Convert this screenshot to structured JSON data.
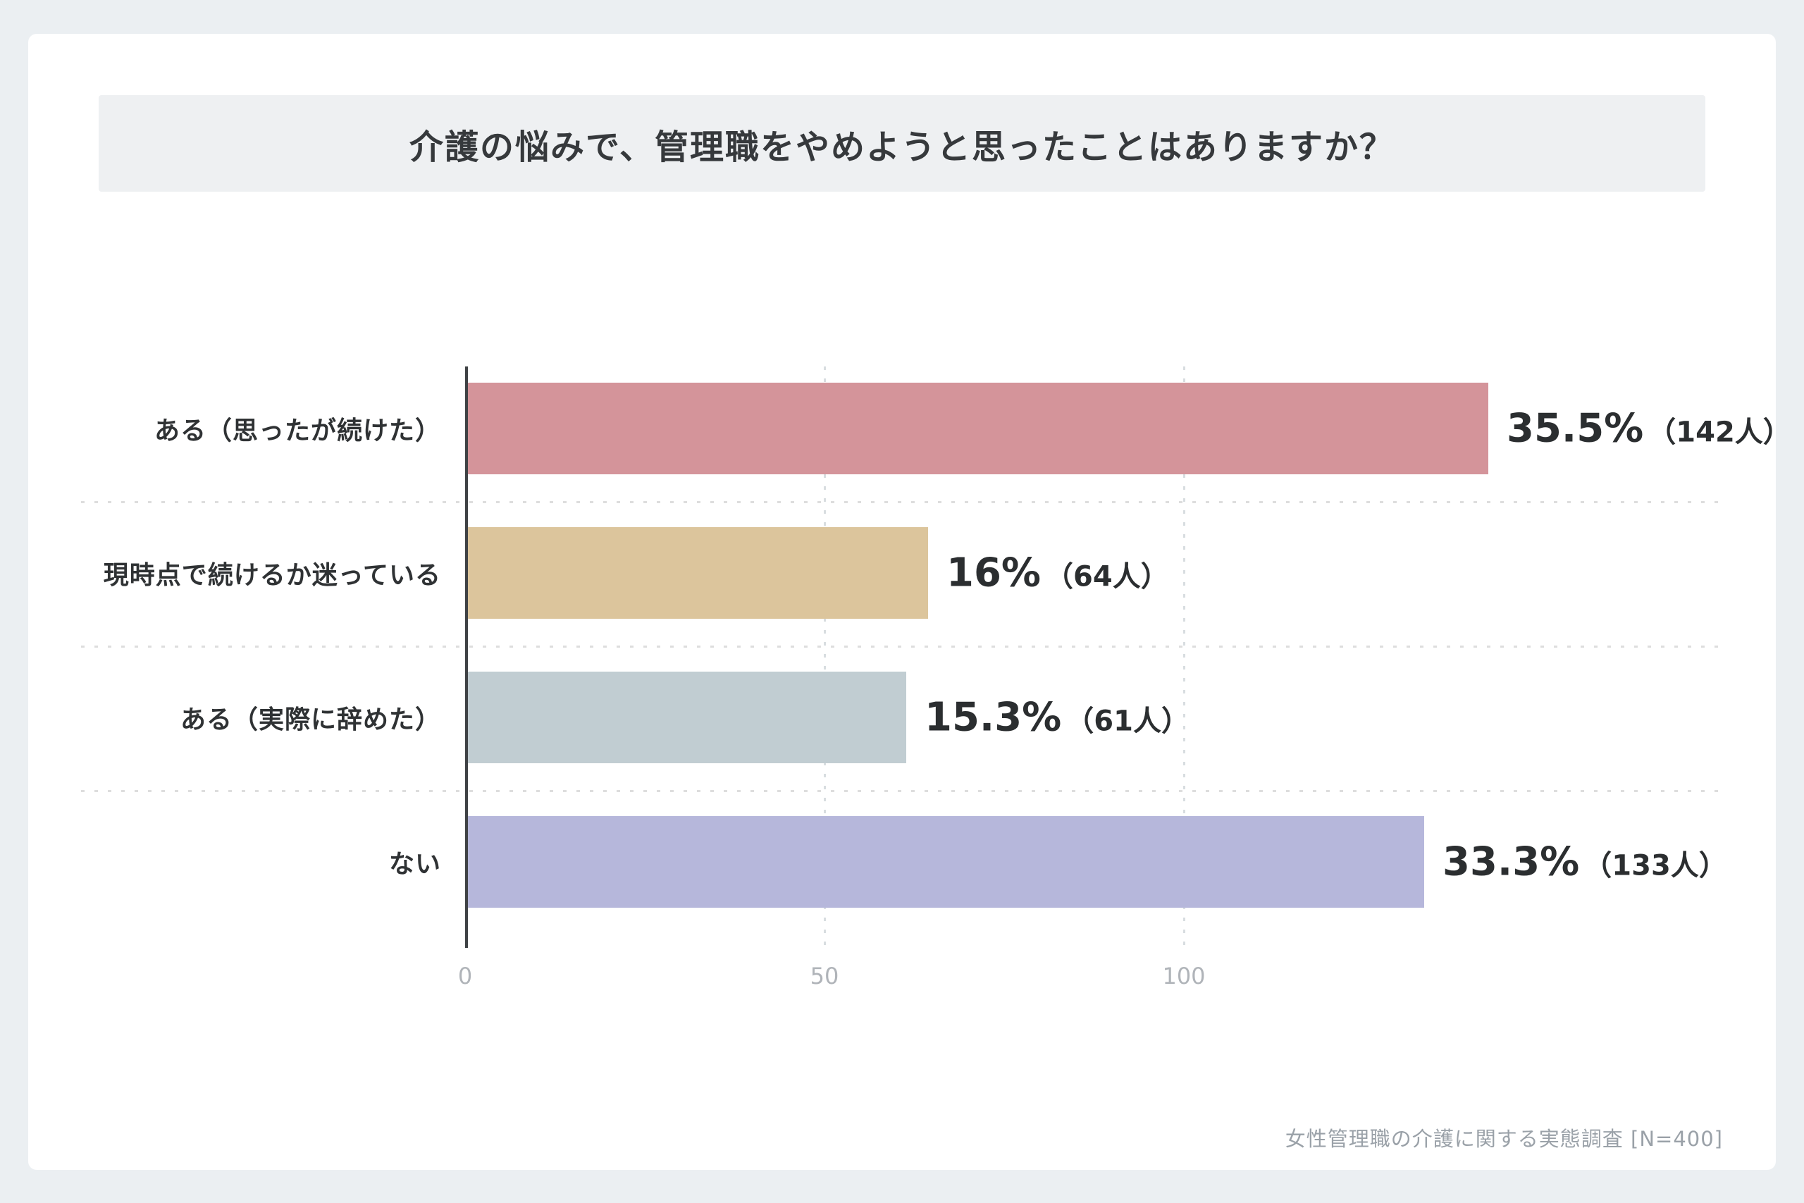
{
  "page": {
    "background_color": "#ebeff2",
    "card_background_color": "#ffffff",
    "title_band_background_color": "#eef0f2"
  },
  "chart_data": {
    "type": "bar",
    "orientation": "horizontal",
    "title": "介護の悩みで、管理職をやめようと思ったことはありますか？",
    "categories": [
      "ある（思ったが続けた）",
      "現時点で続けるか迷っている",
      "ある（実際に辞めた）",
      "ない"
    ],
    "values": [
      142,
      64,
      61,
      133
    ],
    "percent_values": [
      35.5,
      16,
      15.3,
      33.3
    ],
    "value_labels": [
      {
        "percent": "35.5%",
        "count": "（142人）"
      },
      {
        "percent": "16%",
        "count": "（64人）"
      },
      {
        "percent": "15.3%",
        "count": "（61人）"
      },
      {
        "percent": "33.3%",
        "count": "（133人）"
      }
    ],
    "bar_colors": [
      "#d4949a",
      "#dcc59c",
      "#c1cdd2",
      "#b6b7db"
    ],
    "x_ticks": [
      {
        "label": "0",
        "value": 0
      },
      {
        "label": "50",
        "value": 50
      },
      {
        "label": "100",
        "value": 100
      }
    ],
    "xlim": [
      0,
      178
    ],
    "grid": "dotted vertical gridlines at ticks, dotted horizontal separators between rows",
    "legend": "none",
    "source": "女性管理職の介護に関する実態調査 [N=400]"
  }
}
